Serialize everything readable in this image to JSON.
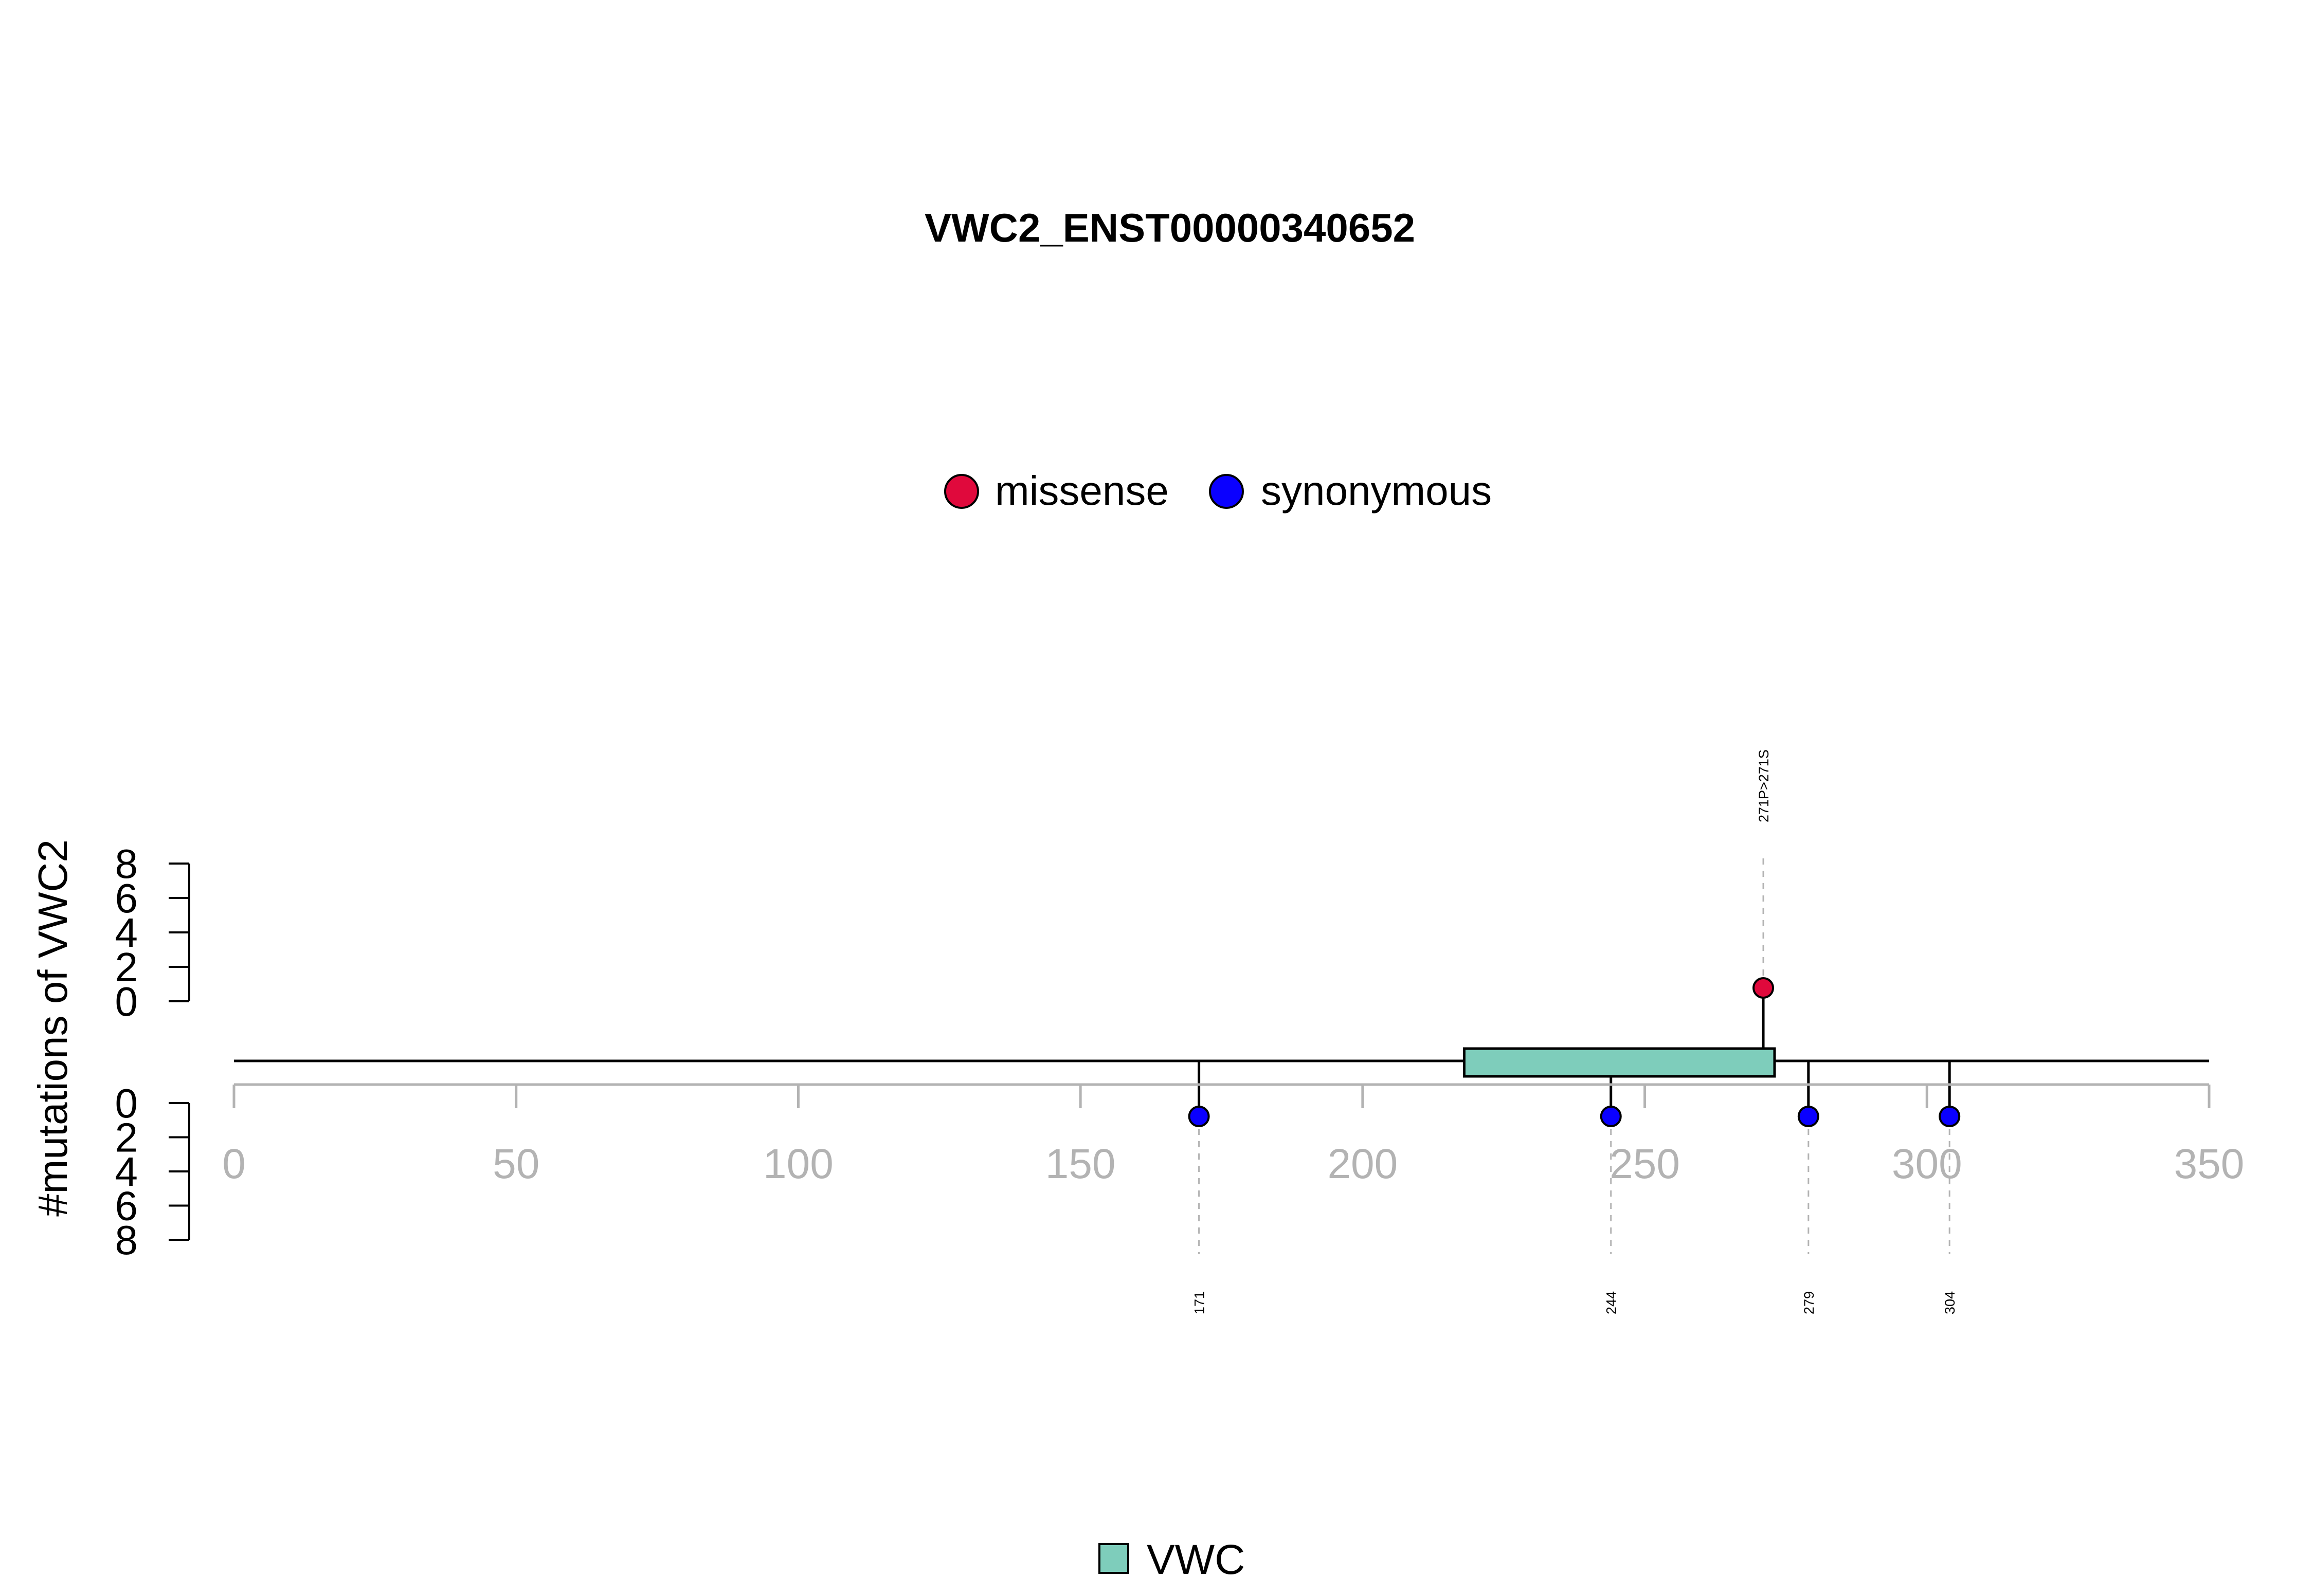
{
  "chart_data": {
    "type": "lollipop",
    "title": "VWC2_ENST00000340652",
    "ylabel": "#mutations of VWC2",
    "xlim": [
      0,
      350
    ],
    "x_ticks": [
      "0",
      "50",
      "100",
      "150",
      "200",
      "250",
      "300",
      "350"
    ],
    "x_tick_values": [
      0,
      50,
      100,
      150,
      200,
      250,
      300,
      350
    ],
    "y_ticks_top": [
      "8",
      "6",
      "4",
      "2",
      "0"
    ],
    "y_ticks_bottom": [
      "0",
      "2",
      "4",
      "6",
      "8"
    ],
    "y_tick_values": [
      8,
      6,
      4,
      2,
      0
    ],
    "ylim": [
      0,
      8
    ],
    "mutation_legend": [
      {
        "name": "missense",
        "color": "#E0093C"
      },
      {
        "name": "synonymous",
        "color": "#0A00FF"
      }
    ],
    "domain_legend": [
      {
        "name": "VWC",
        "color": "#7ECDBB"
      }
    ],
    "domains": [
      {
        "name": "VWC",
        "start": 218,
        "end": 273,
        "color": "#7ECDBB"
      }
    ],
    "mutations": [
      {
        "position": 271,
        "label": "271P>271S",
        "type": "missense",
        "count": 1,
        "side": "top"
      },
      {
        "position": 171,
        "label": "171",
        "type": "synonymous",
        "count": 1,
        "side": "bottom"
      },
      {
        "position": 244,
        "label": "244",
        "type": "synonymous",
        "count": 1,
        "side": "bottom"
      },
      {
        "position": 279,
        "label": "279",
        "type": "synonymous",
        "count": 1,
        "side": "bottom"
      },
      {
        "position": 304,
        "label": "304",
        "type": "synonymous",
        "count": 1,
        "side": "bottom"
      }
    ],
    "colors": {
      "axis": "#B3B3B3",
      "backbone": "#000000",
      "guide": "#B3B3B3"
    }
  }
}
